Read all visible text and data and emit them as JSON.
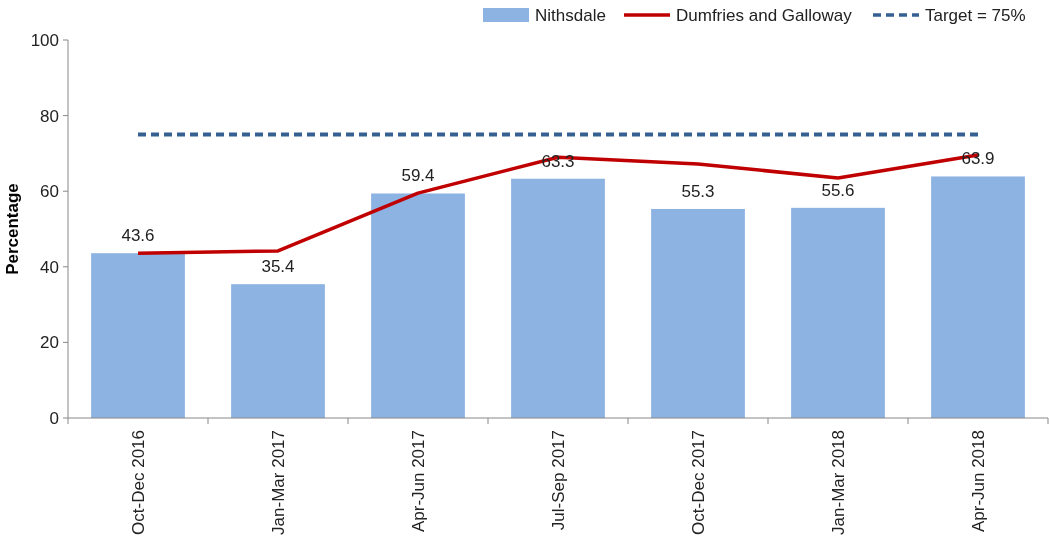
{
  "chart_data": {
    "type": "bar",
    "ylabel": "Percentage",
    "categories": [
      "Oct-Dec 2016",
      "Jan-Mar 2017",
      "Apr-Jun 2017",
      "Jul-Sep 2017",
      "Oct-Dec 2017",
      "Jan-Mar 2018",
      "Apr-Jun 2018"
    ],
    "series": [
      {
        "name": "Nithsdale",
        "color": "#8db3e2",
        "values": [
          43.6,
          35.4,
          59.4,
          63.3,
          55.3,
          55.6,
          63.9
        ],
        "data_labels": true
      },
      {
        "name": "Dumfries and Galloway",
        "type": "line",
        "color": "#c00000",
        "values": [
          43.6,
          44.2,
          59.5,
          69.0,
          67.2,
          63.5,
          69.6
        ]
      },
      {
        "name": "Target = 75%",
        "type": "line",
        "color": "#366092",
        "line_style": "dashed",
        "values": [
          75,
          75,
          75,
          75,
          75,
          75,
          75
        ]
      }
    ],
    "ylim": [
      0,
      100
    ],
    "yticks": [
      0,
      20,
      40,
      60,
      80,
      100
    ],
    "legend": "top right",
    "grid": false
  }
}
